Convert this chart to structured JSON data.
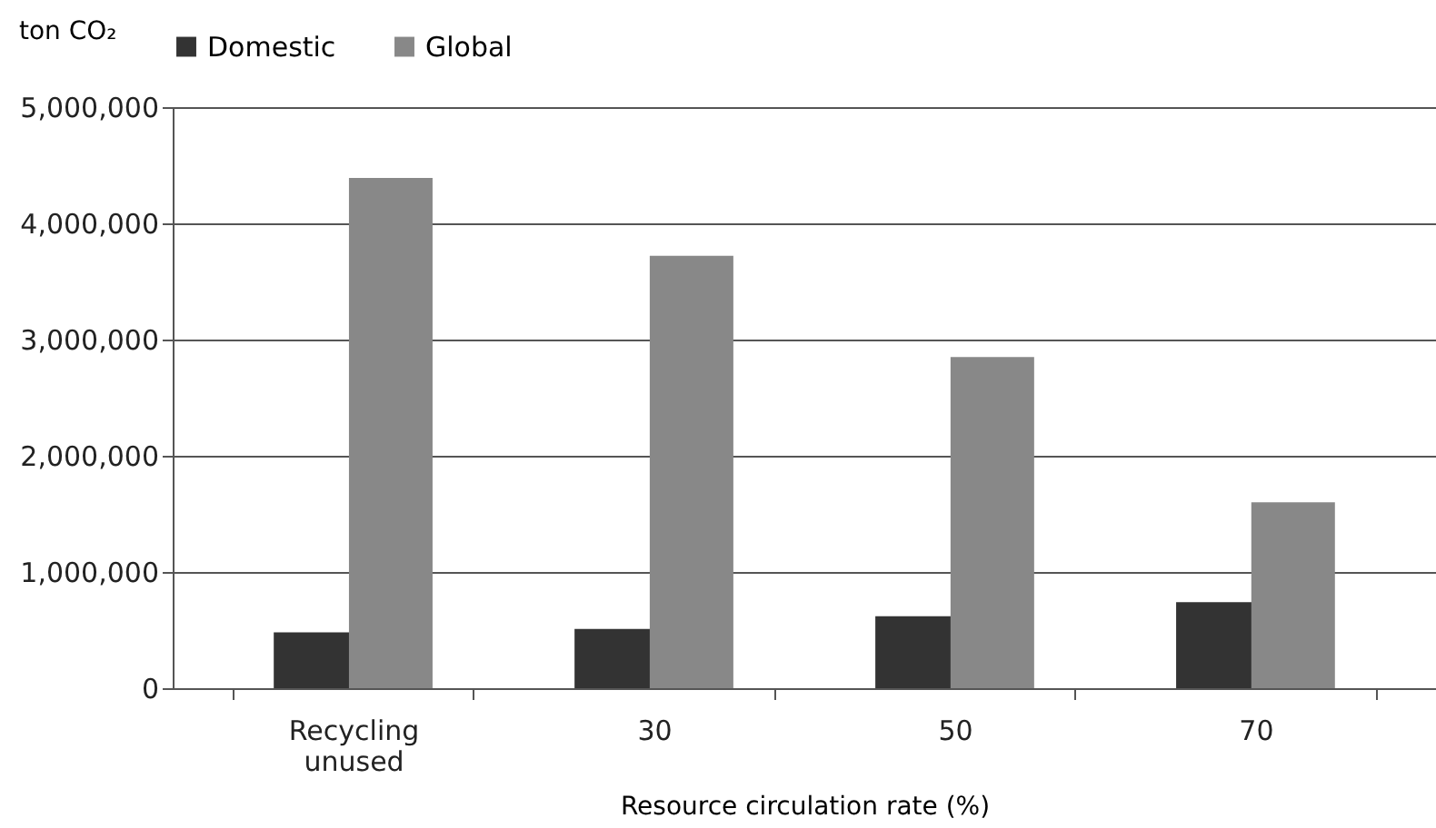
{
  "chart_data": {
    "type": "bar",
    "categories": [
      "Recycling unused",
      "30",
      "50",
      "70"
    ],
    "xlabel": "Resource circulation rate (%)",
    "ylabel": "ton CO₂",
    "series": [
      {
        "name": "Domestic",
        "color": "#333333",
        "values": [
          480000,
          510000,
          620000,
          740000
        ]
      },
      {
        "name": "Global",
        "color": "#888888",
        "values": [
          4390000,
          3720000,
          2850000,
          1600000
        ]
      }
    ],
    "ylim": [
      0,
      5000000
    ],
    "yticks": [
      0,
      {
        "value": 1000000,
        "label": "1,000,000"
      },
      {
        "value": 2000000,
        "label": "2,000,000"
      },
      {
        "value": 3000000,
        "label": "3,000,000"
      },
      {
        "value": 4000000,
        "label": "4,000,000"
      },
      {
        "value": 5000000,
        "label": "5,000,000"
      }
    ],
    "grid": "y",
    "legend": "top"
  }
}
